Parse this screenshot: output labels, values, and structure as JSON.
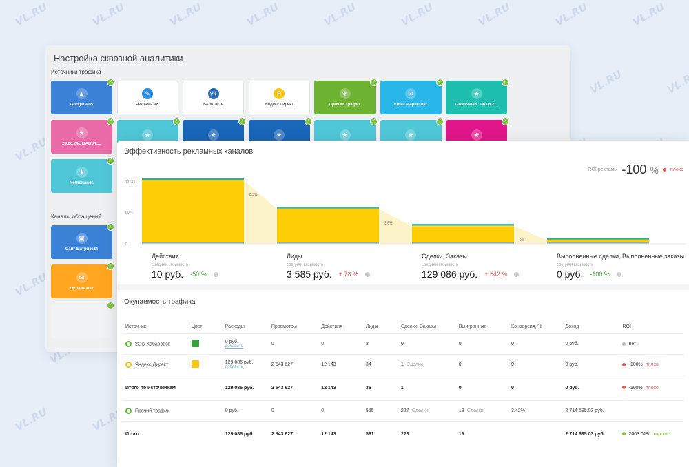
{
  "watermark": "VL.RU",
  "setup": {
    "title": "Настройка сквозной аналитики",
    "sources_label": "Источники трафика",
    "channels_label": "Каналы обращений",
    "sources": [
      {
        "label": "Google Ads",
        "bg": "#3b82d6",
        "icon": "google-ads-icon",
        "glyph": "▲",
        "check": true
      },
      {
        "label": "Реклама VK",
        "bg": "#ffffff",
        "icon": "vk-ads-icon",
        "glyph": "✎",
        "check": false
      },
      {
        "label": "ВКонтакте",
        "bg": "#ffffff",
        "icon": "vk-icon",
        "glyph": "vk",
        "check": false
      },
      {
        "label": "Яндекс.Директ",
        "bg": "#ffffff",
        "icon": "yandex-direct-icon",
        "glyph": "Я",
        "check": false
      },
      {
        "label": "Прочий трафик",
        "bg": "#6db230",
        "icon": "leaf-icon",
        "glyph": "❦",
        "check": true
      },
      {
        "label": "Email Маркетинг",
        "bg": "#29b6e8",
        "icon": "mail-icon",
        "glyph": "✉",
        "check": true
      },
      {
        "label": "CAMPAIGN \"06.06.2...",
        "bg": "#1fbfb0",
        "icon": "star-icon",
        "glyph": "★",
        "check": true
      },
      {
        "label": "23.06.24/JIJADS/E...",
        "bg": "#e96ba8",
        "icon": "star-icon",
        "glyph": "★",
        "check": true
      },
      {
        "label": "",
        "bg": "#4fc7d7",
        "icon": "star-icon",
        "glyph": "★",
        "check": true
      },
      {
        "label": "",
        "bg": "#1a66b8",
        "icon": "star-icon",
        "glyph": "★",
        "check": true
      },
      {
        "label": "",
        "bg": "#1a66b8",
        "icon": "star-icon",
        "glyph": "★",
        "check": true
      },
      {
        "label": "",
        "bg": "#4fc7d7",
        "icon": "star-icon",
        "glyph": "★",
        "check": true
      },
      {
        "label": "",
        "bg": "#4fc7d7",
        "icon": "star-icon",
        "glyph": "★",
        "check": true
      },
      {
        "label": "",
        "bg": "#e0168a",
        "icon": "star-icon",
        "glyph": "★",
        "check": true
      },
      {
        "label": "Netherlands",
        "bg": "#4fc7d7",
        "icon": "star-icon",
        "glyph": "★",
        "check": true
      }
    ],
    "channels": [
      {
        "label": "Сайт Битрикс24",
        "bg": "#3b82d6",
        "icon": "bitrix-icon",
        "glyph": "▣",
        "check": true
      },
      {
        "label": "Онлайн-чат",
        "bg": "#ffa51f",
        "icon": "chat-icon",
        "glyph": "✉",
        "check": true
      },
      {
        "label": "",
        "bg": "#f1f2f3",
        "icon": "form-icon",
        "glyph": "",
        "check": true
      }
    ]
  },
  "efficiency": {
    "title": "Эффективность рекламных каналов",
    "roi_label": "ROI рекламы",
    "roi_value": "-100",
    "roi_unit": "%",
    "roi_status": "плохо",
    "y_ticks": [
      "12143",
      "6071",
      "0"
    ],
    "conversions": [
      "0.3%",
      "2.8%",
      "0%"
    ],
    "stages": [
      {
        "name": "Действия",
        "sub": "средняя стоимость",
        "value": "10 руб.",
        "pct": "-50 %",
        "pct_color": "g",
        "fraction": 1.0
      },
      {
        "name": "Лиды",
        "sub": "средняя стоимость",
        "value": "3 585 руб.",
        "pct": "+ 78 %",
        "pct_color": "r",
        "fraction": 0.55
      },
      {
        "name": "Сделки, Заказы",
        "sub": "средняя стоимость",
        "value": "129 086 руб.",
        "pct": "+ 542 %",
        "pct_color": "r",
        "fraction": 0.28
      },
      {
        "name": "Выполненные сделки, Выполненные заказы",
        "sub": "средняя стоимость",
        "value": "0 руб.",
        "pct": "-100 %",
        "pct_color": "g",
        "fraction": 0.06
      }
    ]
  },
  "payback": {
    "title": "Окупаемость трафика",
    "headers": [
      "Источник",
      "Цвет",
      "Расходы",
      "Просмотры",
      "Действия",
      "Лиды",
      "Сделки, Заказы",
      "Выигранные",
      "Конверсия, %",
      "Доход",
      "ROI"
    ],
    "rows": [
      {
        "source": "2Gis Хабаровск",
        "ring": "#5ab43a",
        "swatch": "#3aa03a",
        "cost": "0 руб.",
        "add": "добавить",
        "views": "0",
        "actions": "0",
        "leads": "2",
        "deals": "0",
        "deals_note": "",
        "won": "0",
        "won_note": "",
        "conv": "0",
        "income": "0 руб.",
        "roi_dot": "#bbbbbb",
        "roi": "нет",
        "roi_tag": ""
      },
      {
        "source": "Яндекс.Директ",
        "ring": "#f5c518",
        "swatch": "#f5c518",
        "cost": "129 086 руб.",
        "add": "добавить",
        "views": "2 543 627",
        "actions": "12 143",
        "leads": "34",
        "deals": "1",
        "deals_note": "· Сделки",
        "won": "0",
        "won_note": "",
        "conv": "0",
        "income": "0 руб.",
        "roi_dot": "#e85b5b",
        "roi": "-100%",
        "roi_tag": "плохо"
      }
    ],
    "subtotal": {
      "source": "Итого по источникам",
      "cost": "129 086 руб.",
      "views": "2 543 627",
      "actions": "12 143",
      "leads": "36",
      "deals": "1",
      "won": "0",
      "conv": "0",
      "income": "0 руб.",
      "roi_dot": "#e85b5b",
      "roi": "-100%",
      "roi_tag": "плохо"
    },
    "other": {
      "source": "Прочий трафик",
      "ring": "#5ab43a",
      "cost": "0 руб.",
      "views": "0",
      "actions": "0",
      "leads": "555",
      "deals": "227",
      "deals_note": "· Сделки",
      "won": "19",
      "won_note": "· Сделки",
      "conv": "3.42%",
      "income": "2 714 695.03 руб."
    },
    "total": {
      "source": "Итого",
      "cost": "129 086 руб.",
      "views": "2 543 627",
      "actions": "12 143",
      "leads": "591",
      "deals": "228",
      "won": "19",
      "conv": "",
      "income": "2 714 695.03 руб.",
      "roi_dot": "#8bc34a",
      "roi": "2003.01%",
      "roi_tag": "хорошо"
    }
  }
}
